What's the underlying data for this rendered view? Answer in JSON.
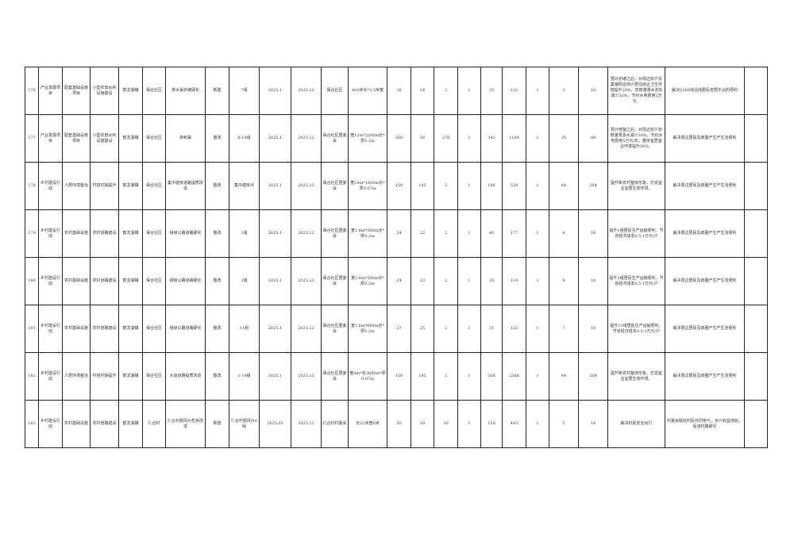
{
  "rows": [
    {
      "cells": [
        "176",
        "产业发展项目",
        "配套基础设施项目",
        "小型农田水利设施建设",
        "鹤龙湖镇",
        "保合社区",
        "排水渠护坡硬化",
        "新建",
        "7组",
        "2025.1",
        "2025.12",
        "保合社区",
        "400米长*3.5米宽",
        "16",
        "14",
        "2",
        "1",
        "35",
        "132",
        "1",
        "3",
        "10",
        "预计护坡之后，对周边农户及集镇附近商户居住综合卫生环境提升20%，农田灌溉水流失减少50%，节约水电费用3万元。",
        "解决S308线沿线居民安居乐业的便利",
        ""
      ]
    },
    {
      "cells": [
        "177",
        "产业发展项目",
        "配套基础设施项目",
        "小型农田水利设施建设",
        "鹤龙湖镇",
        "保合社区",
        "排积渠",
        "整改",
        "6-14组",
        "2025.1",
        "2025.12",
        "保合社区居委会",
        "宽12m*2200m长*厚0.2m",
        "300",
        "30",
        "270",
        "1",
        "342",
        "1169",
        "1",
        "35",
        "89",
        "预计修整之后，对周边农户农田灌溉渗水减少30%，节约水电费用5万元/年，整体宜居宜业环境提升30%。",
        "解决周边居民及商圈产生产生活便利",
        ""
      ]
    },
    {
      "cells": [
        "178",
        "乡村建设行动",
        "人居环境整治",
        "村容村貌提升",
        "鹤龙湖镇",
        "保合社区",
        "集中建房道路提质改造",
        "整改",
        "集中建房点",
        "2025.1",
        "2025.12",
        "保合社区居委会",
        "宽14m*1600m长*厚0.07m",
        "150",
        "145",
        "5",
        "1",
        "146",
        "520",
        "1",
        "64",
        "204",
        "提升新农村整体形象，打造宜业宜居生态环境。",
        "解决周边居民及商圈产生产生活便利",
        ""
      ]
    },
    {
      "cells": [
        "179",
        "乡村建设行动",
        "农村基础设施",
        "农村道路建设",
        "鹤龙湖镇",
        "保合社区",
        "组级公路道路硬化",
        "整改",
        "1组",
        "2025.1",
        "2025.12",
        "保合社区居委会",
        "宽2.6m*500m长*厚0.2m",
        "24",
        "22",
        "2",
        "1",
        "46",
        "177",
        "1",
        "8",
        "18",
        "提升1组居民生产运输便利，节省经济成本0.5-1万元/户",
        "解决周边居民及商圈产生产生活便利",
        ""
      ]
    },
    {
      "cells": [
        "180",
        "乡村建设行动",
        "农村基础设施",
        "农村道路建设",
        "鹤龙湖镇",
        "保合社区",
        "组级公路道路硬化",
        "整改",
        "2组",
        "2025.1",
        "2025.12",
        "保合社区居委会",
        "宽2.6m*500m长*厚0.2m",
        "24",
        "22",
        "2",
        "1",
        "35",
        "114",
        "1",
        "8",
        "18",
        "提升2组居民生产运输便利，节省经济成本0.5-1万元/户",
        "解决周边居民及商圈产生产生活便利",
        ""
      ]
    },
    {
      "cells": [
        "181",
        "乡村建设行动",
        "农村基础设施",
        "农村道路建设",
        "鹤龙湖镇",
        "保合社区",
        "组级公路道路硬化",
        "整改",
        "11组",
        "2025.1",
        "2025.12",
        "保合社区居委会",
        "宽2.6m*600m长*厚0.2m",
        "27",
        "25",
        "2",
        "1",
        "31",
        "122",
        "1",
        "7",
        "18",
        "提升11组居民生产运输便利，节省经济成本0.5-1万元/户",
        "解决周边居民及商圈产生产生活便利",
        ""
      ]
    },
    {
      "cells": [
        "182",
        "乡村建设行动",
        "人居环境整治",
        "村容村貌提升",
        "鹤龙湖镇",
        "保合社区",
        "大道道路提质改造",
        "整改",
        "1-14组",
        "2025.1",
        "2025.12",
        "保合社区居委会",
        "宽4m*长3600m*厚0.07m",
        "150",
        "145",
        "5",
        "1",
        "568",
        "2568",
        "1",
        "64",
        "204",
        "提升新农村整体形象，打造宜业宜居生态环境。",
        "解决周边居民及商圈产生产生活便利",
        ""
      ]
    },
    {
      "cells": [
        "183",
        "乡村建设行动",
        "农村基础设施",
        "农村道路建设",
        "鹤龙湖镇",
        "仁合村",
        "仁合村顺风片危桥改造",
        "新建",
        "仁合村顺风片6组",
        "2025.01",
        "2025.12",
        "仁合村村委会",
        "长22米宽6米",
        "50",
        "20",
        "30",
        "1",
        "150",
        "493",
        "1",
        "5",
        "14",
        "解决村民安全出行",
        "村委会联结村民共同参与，多户收益增收，促进村路硬化",
        ""
      ]
    }
  ]
}
